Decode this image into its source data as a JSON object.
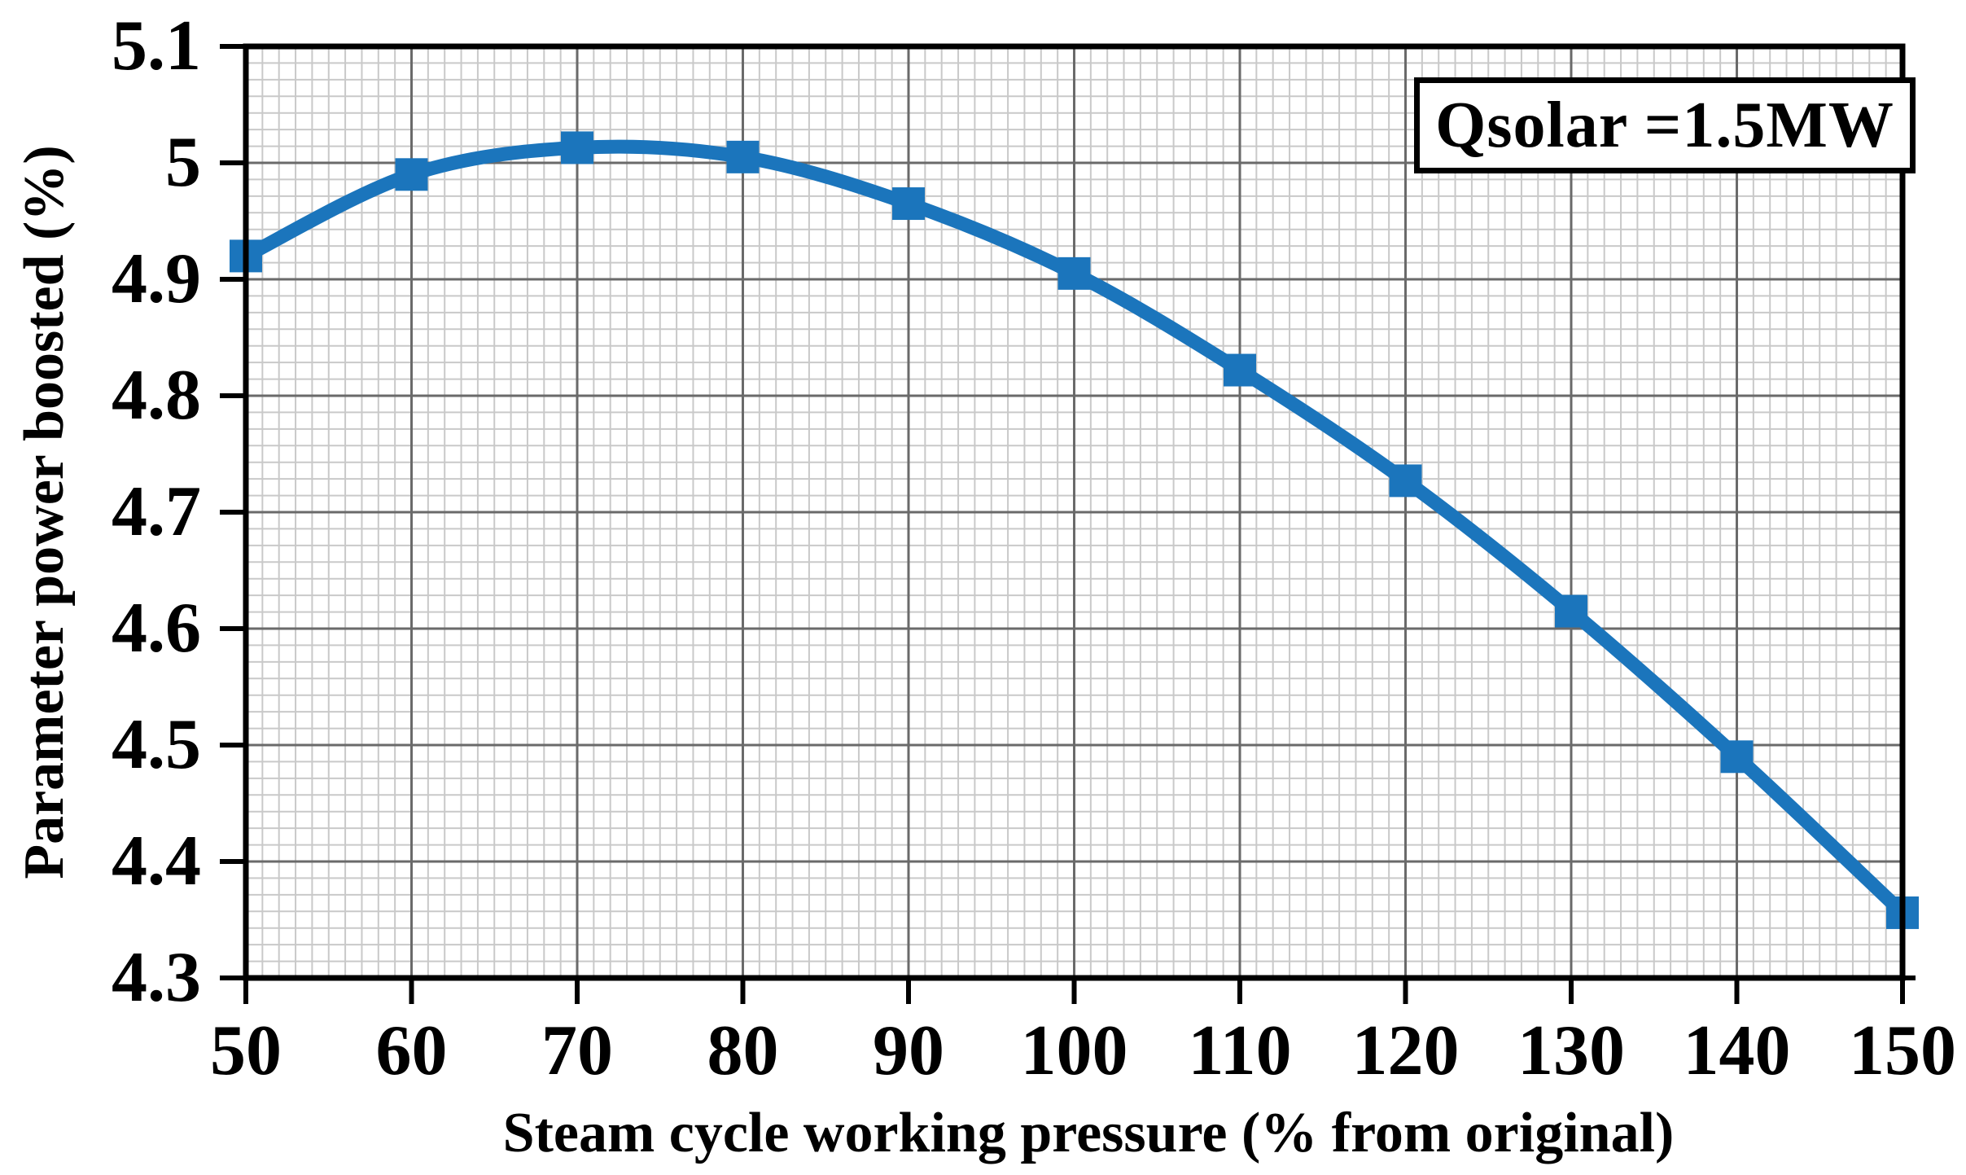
{
  "chart_data": {
    "type": "line",
    "legend": "Qsolar =1.5MW",
    "legend_position": "top-right",
    "xlabel": "Steam cycle working pressure (% from original)",
    "ylabel": "Parameter power boosted (%)",
    "x": [
      50,
      60,
      70,
      80,
      90,
      100,
      110,
      120,
      130,
      140,
      150
    ],
    "series": [
      {
        "name": "Qsolar =1.5MW",
        "values": [
          4.92,
          4.99,
          5.013,
          5.005,
          4.965,
          4.905,
          4.822,
          4.727,
          4.615,
          4.49,
          4.356
        ]
      }
    ],
    "xlim": [
      50,
      150
    ],
    "ylim": [
      4.3,
      5.1
    ],
    "x_ticks": [
      50,
      60,
      70,
      80,
      90,
      100,
      110,
      120,
      130,
      140,
      150
    ],
    "x_tick_labels": [
      "50",
      "60",
      "70",
      "80",
      "90",
      "100",
      "110",
      "120",
      "130",
      "140",
      "150"
    ],
    "y_ticks": [
      5.1,
      5.0,
      4.9,
      4.8,
      4.7,
      4.6,
      4.5,
      4.4,
      4.3
    ],
    "y_tick_labels": [
      "5.1",
      "5",
      "4.9",
      "4.8",
      "4.7",
      "4.6",
      "4.5",
      "4.4",
      "4.3"
    ],
    "grid": {
      "major": true,
      "minor": true,
      "x_minor_per_major": 10,
      "y_minor_per_major": 7
    },
    "marker": "square",
    "line_smooth": true,
    "colors": {
      "line": "#1b75bc",
      "marker": "#1b75bc",
      "major_grid": "#6a6a6a",
      "minor_grid": "#c9c9c9",
      "axis": "#000000",
      "text": "#000000",
      "background": "#ffffff"
    }
  }
}
